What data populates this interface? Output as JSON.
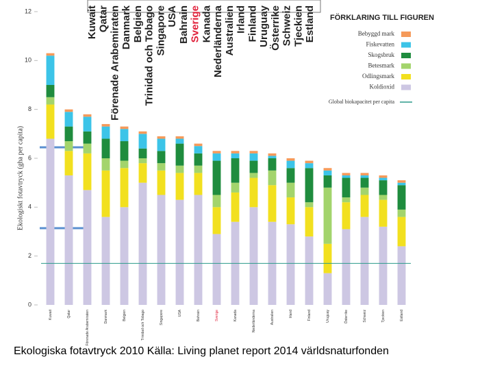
{
  "chart_data": {
    "type": "stacked_bar",
    "y_label": "Ekologiskt fotavtryck (gha per capita)",
    "caption": "Ekologiska fotavtryck 2010 Källa: Living planet report 2014 världsnaturfonden",
    "legend_title": "FÖRKLARING TILL FIGUREN",
    "categories": [
      "Kuwait",
      "Qatar",
      "Förenade Arabemiraten",
      "Danmark",
      "Belgien",
      "Trinidad och Tobago",
      "Singapore",
      "USA",
      "Bahrain",
      "Sverige",
      "Kanada",
      "Nederländerna",
      "Australien",
      "Irland",
      "Finland",
      "Uruguay",
      "Österrike",
      "Schweiz",
      "Tjeckien",
      "Estland"
    ],
    "highlight_categories": [
      9
    ],
    "highlight_color": "#e0203a",
    "series": [
      {
        "name": "Koldioxid",
        "color": "#cdc7e3",
        "values": [
          6.8,
          5.3,
          4.7,
          3.6,
          4.0,
          5.0,
          4.5,
          4.3,
          4.5,
          2.9,
          3.4,
          4.0,
          3.4,
          3.3,
          2.8,
          1.3,
          3.1,
          3.6,
          3.2,
          2.4
        ]
      },
      {
        "name": "Odlingsmark",
        "color": "#f2e01f",
        "values": [
          1.4,
          1.0,
          1.5,
          1.9,
          1.6,
          0.8,
          1.0,
          1.1,
          0.9,
          1.1,
          1.2,
          1.2,
          1.5,
          1.1,
          1.2,
          1.2,
          1.1,
          0.9,
          1.1,
          1.2
        ]
      },
      {
        "name": "Betesmark",
        "color": "#a3d46c",
        "values": [
          0.3,
          0.4,
          0.4,
          0.5,
          0.3,
          0.2,
          0.3,
          0.3,
          0.3,
          0.5,
          0.4,
          0.2,
          0.6,
          0.6,
          0.2,
          2.3,
          0.2,
          0.3,
          0.2,
          0.3
        ]
      },
      {
        "name": "Skogsbruk",
        "color": "#1f8c3e",
        "values": [
          0.5,
          0.6,
          0.5,
          0.8,
          0.8,
          0.4,
          0.5,
          0.9,
          0.5,
          1.4,
          1.0,
          0.5,
          0.5,
          0.6,
          1.4,
          0.5,
          0.8,
          0.4,
          0.6,
          1.0
        ]
      },
      {
        "name": "Fiskevatten",
        "color": "#3cc4e8",
        "values": [
          1.2,
          0.6,
          0.6,
          0.5,
          0.5,
          0.6,
          0.5,
          0.2,
          0.3,
          0.3,
          0.2,
          0.3,
          0.1,
          0.3,
          0.2,
          0.2,
          0.1,
          0.1,
          0.1,
          0.1
        ]
      },
      {
        "name": "Bebyggd mark",
        "color": "#f59a5a",
        "values": [
          0.1,
          0.1,
          0.1,
          0.1,
          0.1,
          0.1,
          0.1,
          0.1,
          0.1,
          0.1,
          0.1,
          0.1,
          0.1,
          0.1,
          0.1,
          0.1,
          0.1,
          0.1,
          0.1,
          0.1
        ]
      }
    ],
    "reference_line": {
      "name": "Global biokapacitet per capita",
      "value": 1.7,
      "color": "#2a9a8a"
    },
    "ylim": [
      0,
      12
    ],
    "yticks": [
      0,
      2,
      4,
      6,
      8,
      10,
      12
    ]
  }
}
